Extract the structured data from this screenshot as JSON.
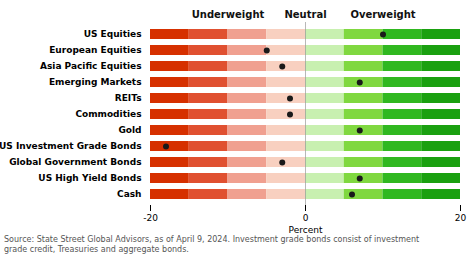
{
  "chart_data": {
    "type": "dot",
    "orientation": "horizontal",
    "categories": [
      "US Equities",
      "European Equities",
      "Asia Pacific Equities",
      "Emerging Markets",
      "REITs",
      "Commodities",
      "Gold",
      "US Investment Grade Bonds",
      "Global Government Bonds",
      "US High Yield Bonds",
      "Cash"
    ],
    "values": [
      10,
      -5,
      -3,
      7,
      -2,
      -2,
      7,
      -18,
      -3,
      7,
      6
    ],
    "color": "#1a1a1a",
    "colors": [
      "#d63000",
      "#e05030",
      "#f0a090",
      "#f8d0c0",
      "#c8f0b0",
      "#80d840",
      "#30b820",
      "#1aa010"
    ],
    "xlabel": "Percent",
    "xlim": [
      -20,
      20
    ],
    "xticks": [
      -20,
      0,
      20
    ],
    "annotations": [
      "Underweight",
      "Neutral",
      "Overweight"
    ],
    "caption": "Source: State Street Global Advisors, as of April 9, 2024. Investment grade bonds consist of investment\ngrade credit, Treasuries and aggregate bonds.",
    "grid": false
  }
}
